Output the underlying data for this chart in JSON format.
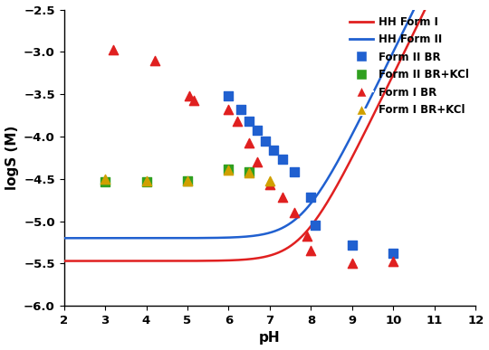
{
  "xlim": [
    2,
    12
  ],
  "ylim": [
    -6,
    -2.5
  ],
  "xlabel": "pH",
  "ylabel": "logS (M)",
  "xticks": [
    2,
    3,
    4,
    5,
    6,
    7,
    8,
    9,
    10,
    11,
    12
  ],
  "yticks": [
    -6,
    -5.5,
    -5,
    -4.5,
    -4,
    -3.5,
    -3,
    -2.5
  ],
  "hh_form1_color": "#e02020",
  "hh_form2_color": "#2060d0",
  "hh_form1_logS0": -5.47,
  "hh_form1_pKa": 7.8,
  "hh_form2_logS0": -5.2,
  "hh_form2_pKa": 7.8,
  "form2_br_x": [
    6.0,
    6.3,
    6.5,
    6.7,
    6.9,
    7.1,
    7.3,
    7.6,
    8.0,
    8.1,
    9.0,
    10.0
  ],
  "form2_br_y": [
    -3.52,
    -3.68,
    -3.82,
    -3.93,
    -4.05,
    -4.16,
    -4.27,
    -4.42,
    -4.72,
    -5.05,
    -5.28,
    -5.38
  ],
  "form2_brkci_x": [
    3.0,
    4.0,
    5.0,
    6.0,
    6.5
  ],
  "form2_brkci_y": [
    -4.53,
    -4.53,
    -4.52,
    -4.38,
    -4.42
  ],
  "form1_br_x": [
    3.2,
    4.2,
    5.05,
    5.15,
    6.0,
    6.2,
    6.5,
    6.7,
    7.0,
    7.3,
    7.6,
    7.9,
    8.0,
    9.0,
    10.0
  ],
  "form1_br_y": [
    -2.97,
    -3.1,
    -3.52,
    -3.57,
    -3.68,
    -3.82,
    -4.08,
    -4.3,
    -4.57,
    -4.72,
    -4.9,
    -5.18,
    -5.35,
    -5.5,
    -5.48
  ],
  "form1_brkci_x": [
    3.0,
    4.0,
    5.0,
    6.0,
    6.5,
    7.0
  ],
  "form1_brkci_y": [
    -4.5,
    -4.52,
    -4.52,
    -4.4,
    -4.43,
    -4.52
  ],
  "form2_br_color": "#2060d0",
  "form2_brkci_color": "#30a020",
  "form1_br_color": "#e02020",
  "form1_brkci_color": "#d0a000",
  "legend_labels": [
    "HH Form I",
    "HH Form II",
    "Form II BR",
    "Form II BR+KCl",
    "Form I BR",
    "Form I BR+KCl"
  ]
}
